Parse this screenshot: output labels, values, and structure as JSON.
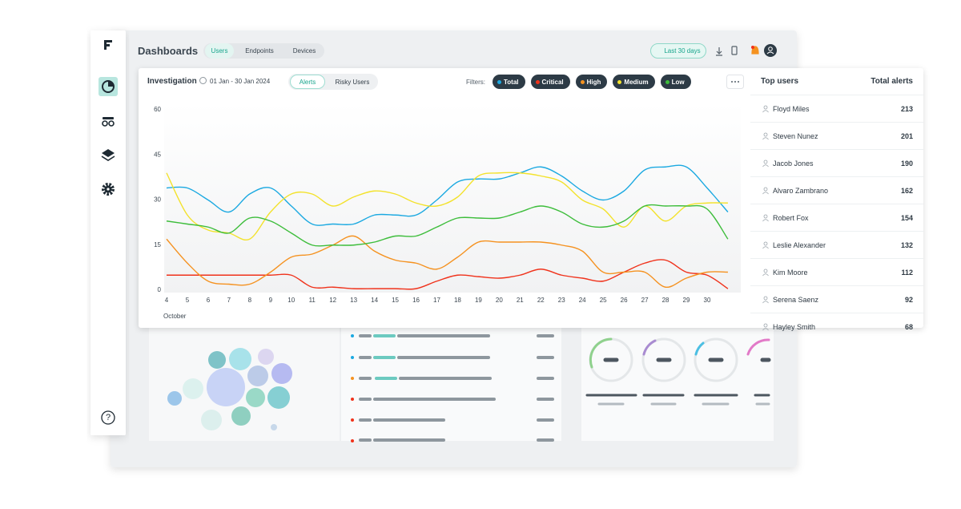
{
  "header": {
    "title": "Dashboards",
    "tabs": [
      "Users",
      "Endpoints",
      "Devices"
    ],
    "date_filter": "Last 30 days"
  },
  "help": "?",
  "panel": {
    "title": "Investigation",
    "date_range": "01 Jan - 30 Jan 2024",
    "toggles": [
      "Alerts",
      "Risky Users"
    ],
    "filters_label": "Filters:"
  },
  "chart_data": {
    "type": "line",
    "x_label": "October",
    "categories": [
      "4",
      "5",
      "6",
      "7",
      "8",
      "9",
      "10",
      "11",
      "12",
      "13",
      "14",
      "15",
      "16",
      "17",
      "18",
      "19",
      "20",
      "21",
      "22",
      "23",
      "24",
      "25",
      "26",
      "27",
      "28",
      "29",
      "30",
      null
    ],
    "ylim": [
      0,
      60
    ],
    "yticks": [
      0,
      15,
      30,
      45,
      60
    ],
    "grid": false,
    "series": [
      {
        "name": "Total",
        "color": "#1ba9e1",
        "values": [
          34,
          34,
          30,
          26,
          32,
          34,
          28,
          22,
          22,
          22,
          25,
          25,
          25,
          30,
          36,
          37,
          37,
          39,
          41,
          38,
          33,
          30,
          33,
          40,
          41,
          41,
          34,
          26
        ]
      },
      {
        "name": "Critical",
        "color": "#f0321b",
        "values": [
          5,
          5,
          5,
          5,
          5,
          5,
          5,
          1,
          1,
          0.5,
          0.5,
          0.5,
          0.5,
          3,
          5,
          4.5,
          4,
          5,
          7,
          5,
          4,
          3,
          6,
          9,
          10,
          6,
          5,
          0.5
        ]
      },
      {
        "name": "High",
        "color": "#f59220",
        "values": [
          17,
          9,
          3,
          2,
          2,
          6,
          11,
          12,
          15,
          18,
          13,
          10,
          9,
          7,
          11,
          16,
          16,
          16,
          16,
          15,
          13,
          6,
          6,
          6,
          1,
          4,
          6,
          6
        ]
      },
      {
        "name": "Medium",
        "color": "#f3e22c",
        "values": [
          39,
          25,
          20,
          19,
          17,
          26,
          32,
          32,
          28,
          31,
          33,
          32,
          29,
          28,
          31,
          38,
          39,
          39,
          38,
          36,
          30,
          27,
          21,
          28,
          23,
          28,
          29,
          29
        ]
      },
      {
        "name": "Low",
        "color": "#3dbd3b",
        "values": [
          23,
          22,
          21,
          19,
          24,
          23,
          19,
          15,
          15,
          15,
          16,
          18,
          18,
          21,
          24,
          24,
          24,
          26,
          28,
          26,
          22,
          21,
          23,
          28,
          28,
          28,
          27,
          17
        ]
      }
    ]
  },
  "top_users": {
    "columns": [
      "Top users",
      "Total alerts"
    ],
    "rows": [
      [
        "Floyd Miles",
        213
      ],
      [
        "Steven Nunez",
        201
      ],
      [
        "Jacob Jones",
        190
      ],
      [
        "Alvaro Zambrano",
        162
      ],
      [
        "Robert Fox",
        154
      ],
      [
        "Leslie Alexander",
        132
      ],
      [
        "Kim Moore",
        112
      ],
      [
        "Serena Saenz",
        92
      ],
      [
        "Hayley Smith",
        68
      ]
    ]
  }
}
